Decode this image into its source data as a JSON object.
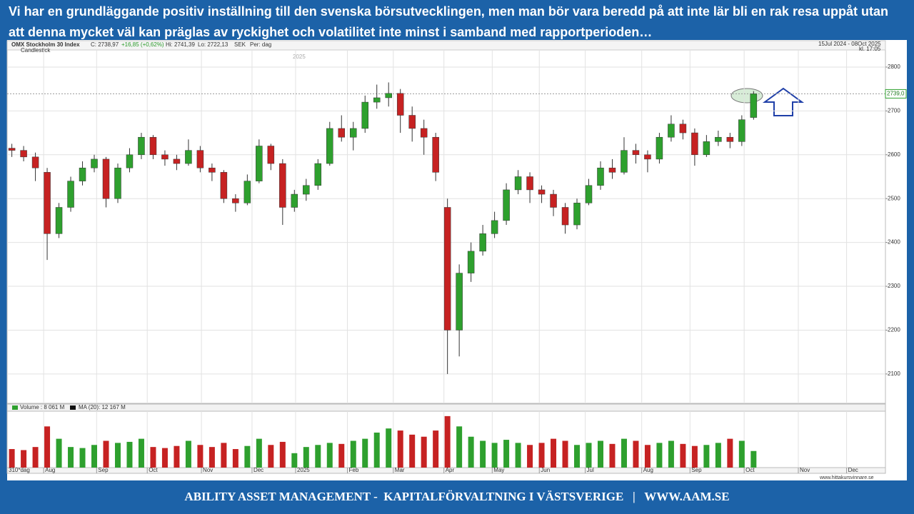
{
  "slide_title": "Vi har en grundläggande positiv inställning till den svenska börsutvecklingen, men man bör vara beredd på att inte lär bli en rak resa uppåt utan att denna mycket väl kan präglas av ryckighet och volatilitet inte minst i samband med rapportperioden…",
  "footer": "ABILITY ASSET MANAGEMENT -  KAPITALFÖRVALTNING I VÄSTSVERIGE   |   WWW.AAM.SE",
  "chart_data": {
    "type": "candlestick",
    "info": [
      "OMX Stockholm 30 Index",
      "C: 2738,97",
      "+16,85 (+0,62%)",
      "Hi: 2741,39",
      "Lo: 2722,13",
      "SEK",
      "Per: dag"
    ],
    "chart_style": "Candlestick",
    "date_range": "15Jul 2024 - 08Oct 2025",
    "time": "kl. 17:05",
    "period": "310*dag",
    "source": "www.hittakursvinnare.se",
    "year_marker": "2025",
    "up_color": "#2ea02e",
    "down_color": "#c62222",
    "categories": [
      null,
      null,
      null,
      null,
      null,
      null,
      null,
      null,
      null,
      null,
      null,
      null,
      null,
      null,
      null,
      null,
      null,
      null,
      null,
      null,
      null,
      null,
      null,
      null,
      null,
      null,
      null,
      null,
      null,
      null,
      null,
      null,
      null,
      null,
      null,
      null,
      null,
      null,
      null,
      null,
      null,
      null,
      null,
      null,
      null,
      null,
      null,
      null,
      null,
      null,
      null,
      null,
      null,
      null,
      null,
      null,
      null,
      null,
      null,
      null,
      null,
      null,
      null,
      null
    ],
    "open": [
      2615,
      2610,
      2595,
      2560,
      2420,
      2480,
      2540,
      2570,
      2590,
      2500,
      2570,
      2600,
      2640,
      2600,
      2590,
      2580,
      2610,
      2570,
      2560,
      2500,
      2490,
      2540,
      2620,
      2580,
      2480,
      2510,
      2530,
      2580,
      2660,
      2640,
      2660,
      2720,
      2730,
      2740,
      2690,
      2660,
      2640,
      2480,
      2200,
      2330,
      2380,
      2420,
      2450,
      2520,
      2550,
      2520,
      2510,
      2480,
      2440,
      2490,
      2530,
      2570,
      2560,
      2610,
      2600,
      2590,
      2640,
      2670,
      2650,
      2600,
      2630,
      2640,
      2630,
      2685
    ],
    "high": [
      2625,
      2620,
      2605,
      2570,
      2490,
      2550,
      2585,
      2600,
      2595,
      2580,
      2615,
      2650,
      2645,
      2610,
      2600,
      2635,
      2620,
      2580,
      2565,
      2510,
      2555,
      2635,
      2625,
      2590,
      2520,
      2545,
      2590,
      2675,
      2690,
      2675,
      2735,
      2760,
      2765,
      2750,
      2710,
      2680,
      2650,
      2500,
      2350,
      2400,
      2440,
      2470,
      2535,
      2565,
      2560,
      2530,
      2520,
      2490,
      2500,
      2545,
      2585,
      2590,
      2640,
      2625,
      2610,
      2650,
      2690,
      2680,
      2660,
      2645,
      2655,
      2650,
      2690,
      2745
    ],
    "low": [
      2595,
      2585,
      2540,
      2360,
      2410,
      2470,
      2530,
      2560,
      2480,
      2490,
      2560,
      2590,
      2590,
      2575,
      2565,
      2575,
      2560,
      2540,
      2490,
      2470,
      2485,
      2535,
      2565,
      2440,
      2470,
      2495,
      2520,
      2575,
      2630,
      2610,
      2650,
      2705,
      2710,
      2650,
      2630,
      2600,
      2540,
      2100,
      2140,
      2310,
      2370,
      2410,
      2440,
      2510,
      2490,
      2490,
      2460,
      2420,
      2430,
      2485,
      2520,
      2545,
      2555,
      2580,
      2560,
      2580,
      2630,
      2635,
      2575,
      2595,
      2620,
      2615,
      2620,
      2680
    ],
    "close": [
      2610,
      2595,
      2570,
      2420,
      2480,
      2540,
      2570,
      2590,
      2500,
      2570,
      2600,
      2640,
      2600,
      2590,
      2580,
      2610,
      2570,
      2560,
      2500,
      2490,
      2540,
      2620,
      2580,
      2480,
      2510,
      2530,
      2580,
      2660,
      2640,
      2660,
      2720,
      2730,
      2740,
      2690,
      2660,
      2640,
      2560,
      2200,
      2330,
      2380,
      2420,
      2450,
      2520,
      2550,
      2520,
      2510,
      2480,
      2440,
      2490,
      2530,
      2570,
      2560,
      2610,
      2600,
      2590,
      2640,
      2670,
      2650,
      2600,
      2630,
      2640,
      2630,
      2680,
      2739
    ],
    "volume": [
      9000,
      8500,
      10000,
      20000,
      14000,
      10000,
      9500,
      11000,
      13000,
      12000,
      12500,
      14000,
      10000,
      9500,
      10500,
      13000,
      11000,
      10000,
      12000,
      9000,
      10500,
      14000,
      11000,
      12500,
      7000,
      10000,
      11000,
      12000,
      11500,
      13000,
      14000,
      17000,
      19000,
      18000,
      16000,
      15000,
      18000,
      25000,
      20000,
      15000,
      13000,
      12000,
      13500,
      12000,
      11000,
      12000,
      14000,
      13000,
      11000,
      12000,
      13000,
      11500,
      14000,
      13000,
      11000,
      12000,
      13000,
      11500,
      10500,
      11000,
      12000,
      14000,
      13000,
      8061
    ],
    "volume_label": "Volume : 8 061 M",
    "ma_label": "MA (20): 12 167 M",
    "last_price": 2739,
    "last_price_label": "2739,0",
    "xlim": [
      -0.4,
      74.2
    ],
    "xticks": [
      {
        "value": 2.7,
        "label": "Aug"
      },
      {
        "value": 7.2,
        "label": "Sep"
      },
      {
        "value": 11.5,
        "label": "Oct"
      },
      {
        "value": 16.1,
        "label": "Nov"
      },
      {
        "value": 20.4,
        "label": "Dec"
      },
      {
        "value": 24.1,
        "label": "2025"
      },
      {
        "value": 28.5,
        "label": "Feb"
      },
      {
        "value": 32.4,
        "label": "Mar"
      },
      {
        "value": 36.7,
        "label": "Apr"
      },
      {
        "value": 40.8,
        "label": "May"
      },
      {
        "value": 44.8,
        "label": "Jun"
      },
      {
        "value": 48.7,
        "label": "Jul"
      },
      {
        "value": 53.5,
        "label": "Aug"
      },
      {
        "value": 57.6,
        "label": "Sep"
      },
      {
        "value": 62.2,
        "label": "Oct"
      },
      {
        "value": 66.8,
        "label": "Nov"
      },
      {
        "value": 70.9,
        "label": "Dec"
      }
    ],
    "ylim": [
      2033,
      2839
    ],
    "yticks": [
      2100,
      2200,
      2300,
      2400,
      2500,
      2600,
      2700,
      2800
    ],
    "vlim": [
      0,
      26000
    ],
    "grid": true
  }
}
